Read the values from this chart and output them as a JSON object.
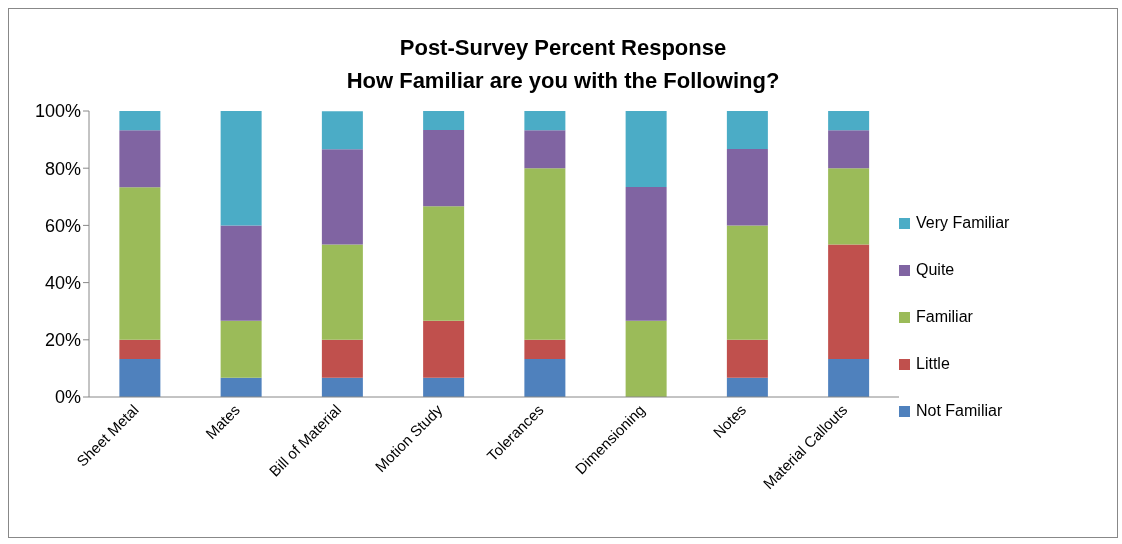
{
  "chart_data": {
    "type": "bar",
    "stacked": true,
    "title": "Post-Survey Percent Response",
    "subtitle": "How Familiar are you with the Following?",
    "categories": [
      "Sheet Metal",
      "Mates",
      "Bill of Material",
      "Motion Study",
      "Tolerances",
      "Dimensioning",
      "Notes",
      "Material Callouts"
    ],
    "series": [
      {
        "name": "Not Familiar",
        "color": "#4f81bd",
        "values": [
          13.3,
          6.7,
          6.7,
          6.7,
          13.3,
          0,
          6.7,
          13.3
        ]
      },
      {
        "name": "Little",
        "color": "#c0504d",
        "values": [
          6.7,
          0,
          13.3,
          20,
          6.7,
          0,
          13.3,
          40
        ]
      },
      {
        "name": "Familiar",
        "color": "#9bbb59",
        "values": [
          53.3,
          20,
          33.3,
          40,
          60,
          26.7,
          40,
          26.7
        ]
      },
      {
        "name": "Quite",
        "color": "#8064a2",
        "values": [
          20,
          33.3,
          33.3,
          26.7,
          13.3,
          46.7,
          26.7,
          13.3
        ]
      },
      {
        "name": "Very Familiar",
        "color": "#4bacc6",
        "values": [
          6.7,
          40,
          13.3,
          6.7,
          6.7,
          26.7,
          13.3,
          6.7
        ]
      }
    ],
    "ylim": [
      0,
      100
    ],
    "yticks": [
      {
        "value": 0,
        "label": "0%"
      },
      {
        "value": 20,
        "label": "20%"
      },
      {
        "value": 40,
        "label": "40%"
      },
      {
        "value": 60,
        "label": "60%"
      },
      {
        "value": 80,
        "label": "80%"
      },
      {
        "value": 100,
        "label": "100%"
      }
    ],
    "legend": "right"
  }
}
